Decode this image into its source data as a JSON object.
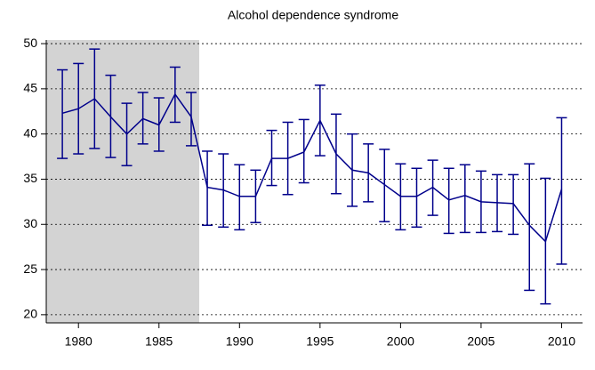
{
  "chart_data": {
    "type": "line_errorbar",
    "title": "Alcohol dependence syndrome",
    "x": [
      1979,
      1980,
      1981,
      1982,
      1983,
      1984,
      1985,
      1986,
      1987,
      1988,
      1989,
      1990,
      1991,
      1992,
      1993,
      1994,
      1995,
      1996,
      1997,
      1998,
      1999,
      2000,
      2001,
      2002,
      2003,
      2004,
      2005,
      2006,
      2007,
      2008,
      2009,
      2010
    ],
    "series": [
      {
        "color": "#00008b",
        "values": [
          42.3,
          42.8,
          43.9,
          41.9,
          40.0,
          41.7,
          41.0,
          44.4,
          41.9,
          34.1,
          33.8,
          33.1,
          33.1,
          37.3,
          37.3,
          38.0,
          41.5,
          37.8,
          36.0,
          35.7,
          34.4,
          33.1,
          33.1,
          34.1,
          32.7,
          33.2,
          32.5,
          32.4,
          32.3,
          29.9,
          28.1,
          33.9
        ],
        "lower": [
          37.3,
          37.8,
          38.4,
          37.4,
          36.5,
          38.9,
          38.1,
          41.3,
          38.7,
          29.9,
          29.7,
          29.4,
          30.2,
          34.3,
          33.3,
          34.6,
          37.6,
          33.4,
          32.0,
          32.5,
          30.3,
          29.4,
          29.7,
          31.0,
          29.0,
          29.1,
          29.1,
          29.2,
          28.9,
          22.7,
          21.2,
          25.6
        ],
        "upper": [
          47.1,
          47.8,
          49.4,
          46.5,
          43.4,
          44.6,
          44.0,
          47.4,
          44.6,
          38.1,
          37.8,
          36.6,
          36.0,
          40.4,
          41.3,
          41.6,
          45.4,
          42.2,
          40.0,
          38.9,
          38.3,
          36.7,
          36.2,
          37.1,
          36.2,
          36.6,
          35.9,
          35.5,
          35.5,
          36.7,
          35.1,
          41.8
        ]
      }
    ],
    "shaded_region": [
      1978,
      1987.5
    ],
    "shade_color": "#d3d3d3",
    "xlim": [
      1978,
      2011.3
    ],
    "xticks": [
      1980,
      1985,
      1990,
      1995,
      2000,
      2005,
      2010
    ],
    "ylim": [
      19.1,
      50.4
    ],
    "yticks": [
      20,
      25,
      30,
      35,
      40,
      45,
      50
    ],
    "grid": true
  }
}
